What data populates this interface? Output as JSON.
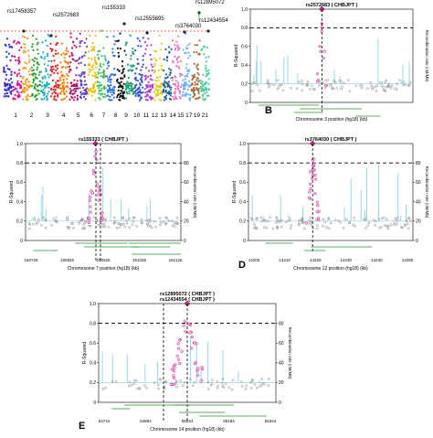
{
  "chart_data": [
    {
      "type": "scatter",
      "panel": "A",
      "subtype": "manhattan",
      "chromosome_labels": [
        "1",
        "2",
        "3",
        "4",
        "5",
        "6",
        "7",
        "8",
        "9",
        "10",
        "11",
        "12",
        "13",
        "14",
        "15",
        "17",
        "19",
        "21"
      ],
      "threshold_line": "dashed-red",
      "annotated_snps": [
        "rs17458357",
        "rs2572683",
        "rs155333",
        "rs12555895",
        "rs3764030",
        "rs12895072",
        "rs12434554"
      ]
    },
    {
      "type": "scatter",
      "panel": "B",
      "subtype": "regional-association",
      "title": "rs2572683 ( CHBJPT )",
      "xlabel": "Chromosome 3 position (hg18) (kb)",
      "ylabel": "R-Squared",
      "ylabel_right": "Recombination rate (cM/Mb)",
      "yticks_left": [
        "0",
        "0.2",
        "0.4",
        "0.6",
        "0.8",
        "1.0"
      ],
      "ylim": [
        0,
        1.0
      ],
      "threshold": 0.8
    },
    {
      "type": "scatter",
      "panel": "C",
      "subtype": "regional-association",
      "title": "rs155333 ( CHBJPT )",
      "xlabel": "Chromosome 7 position (hg18) (kb)",
      "ylabel": "R-Squared",
      "ylabel_right": "Recombination rate (cM/Mb)",
      "yticks_left": [
        "0",
        "0.2",
        "0.4",
        "0.6",
        "0.8",
        "1.0"
      ],
      "yticks_right": [
        "0",
        "20",
        "40",
        "60",
        "80"
      ],
      "xticks": [
        "150726",
        "150826",
        "150926",
        "151026",
        "151126"
      ],
      "ylim": [
        0,
        1.0
      ],
      "threshold": 0.8
    },
    {
      "type": "scatter",
      "panel": "D",
      "subtype": "regional-association",
      "title": "rs3764030 ( CHBJPT )",
      "xlabel": "Chromosome 12 position (hg18) (kb)",
      "ylabel": "R-Squared",
      "ylabel_right": "Recombination rate (cM/Mb)",
      "yticks_left": [
        "0",
        "0.2",
        "0.4",
        "0.6",
        "0.8",
        "1.0"
      ],
      "yticks_right": [
        "0",
        "20",
        "40",
        "60",
        "80"
      ],
      "xticks": [
        "14200",
        "14210",
        "14220",
        "14230",
        "14240",
        "14250"
      ],
      "ylim": [
        0,
        1.0
      ],
      "threshold": 0.8
    },
    {
      "type": "scatter",
      "panel": "E",
      "subtype": "regional-association",
      "title": "rs12895072 ( CHBJPT )",
      "subtitle": "rs12434554 ( CHBJPT )",
      "xlabel": "Chromosome 14 position (hg18) (kb)",
      "ylabel": "R-Squared",
      "ylabel_right": "Recombination rate (cM/Mb)",
      "yticks_left": [
        "0",
        "0.2",
        "0.4",
        "0.6",
        "0.8",
        "1.0"
      ],
      "yticks_right": [
        "0",
        "20",
        "40",
        "60",
        "80"
      ],
      "xticks": [
        "54744",
        "54894",
        "55044",
        "55194",
        "55344"
      ],
      "ylim": [
        0,
        1.0
      ],
      "threshold": 0.8
    }
  ],
  "panel_letters": {
    "B": "B",
    "C": "C",
    "D": "D",
    "E": "E"
  },
  "colors": {
    "snp": "#d02090",
    "recomb": "#8fd3e6",
    "grey": "#8a8a8a",
    "gene": "#2e8b2e",
    "threshold_red": "#e03030"
  }
}
